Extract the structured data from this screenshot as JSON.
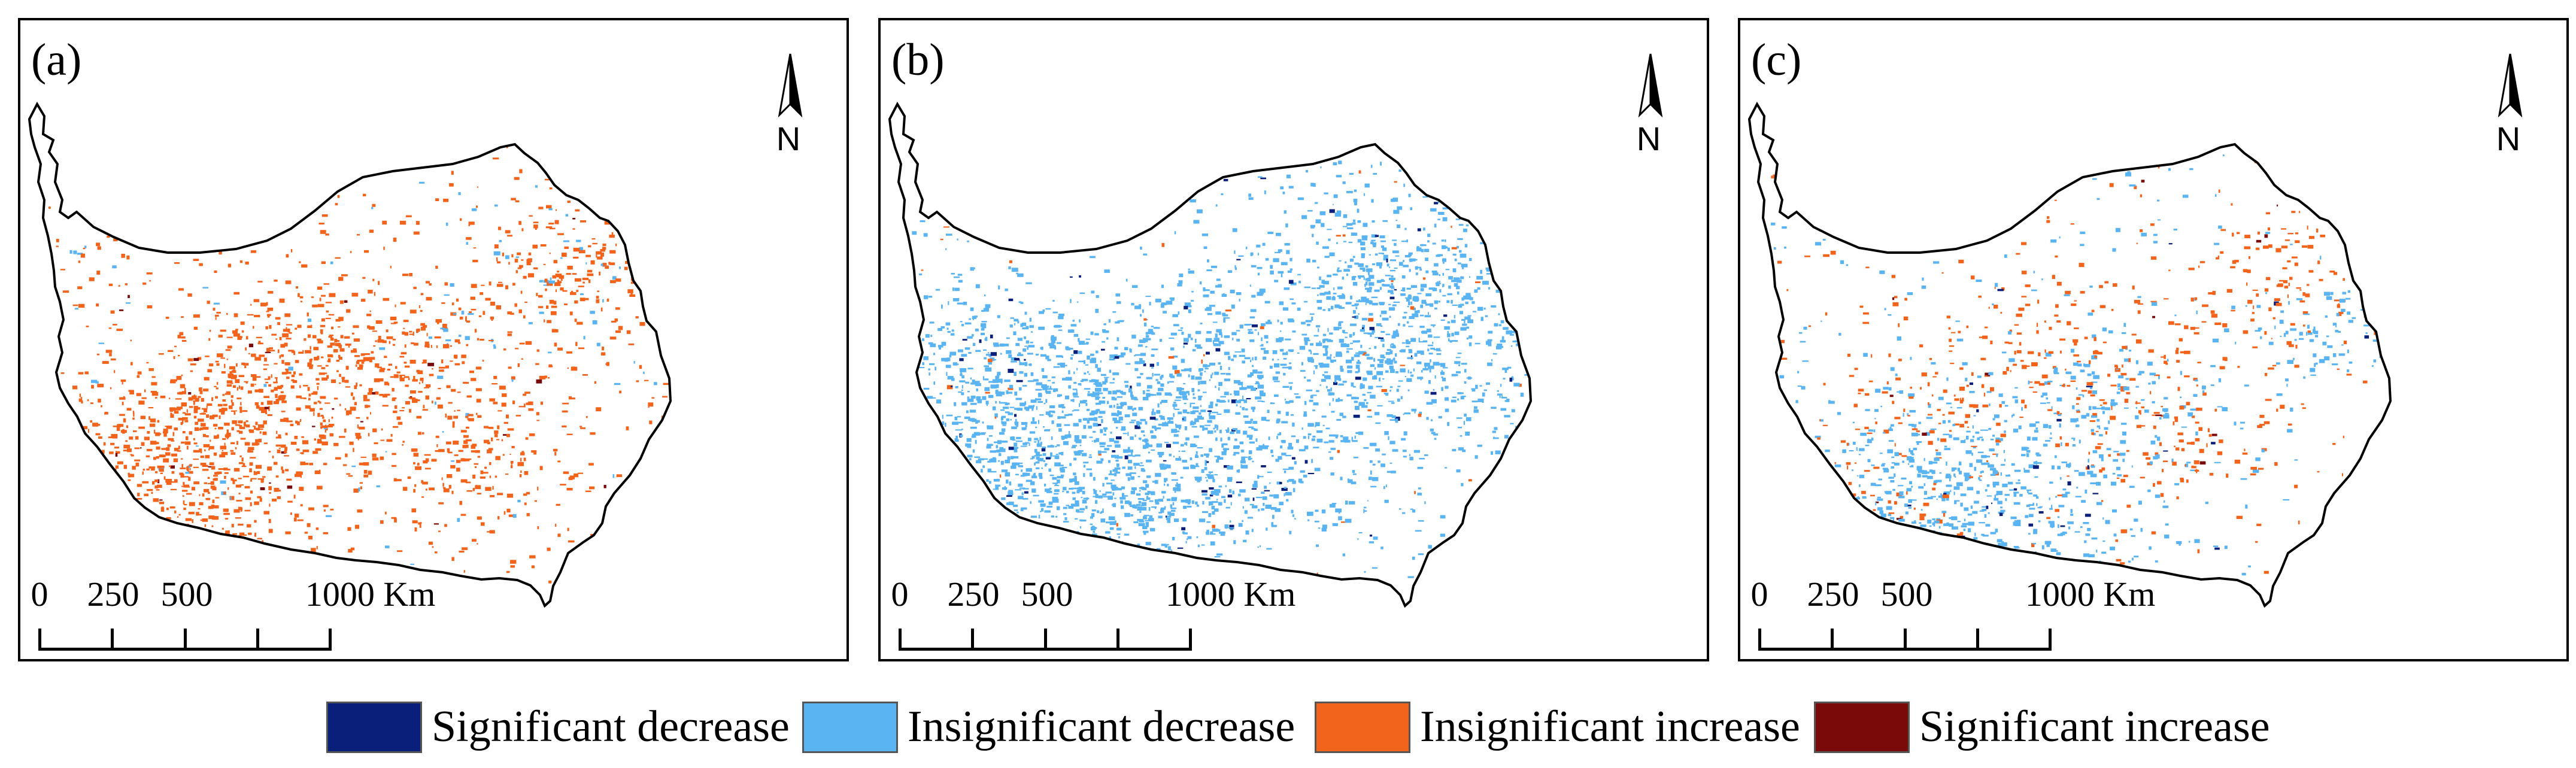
{
  "panels": [
    {
      "label": "(a)",
      "north": "N",
      "scale": {
        "ticks": [
          "0",
          "250",
          "500",
          "1000 Km"
        ]
      },
      "pattern": {
        "increase_share": 0.78,
        "decrease_share": 0.16,
        "significant_share": 0.02
      }
    },
    {
      "label": "(b)",
      "north": "N",
      "scale": {
        "ticks": [
          "0",
          "250",
          "500",
          "1000 Km"
        ]
      },
      "pattern": {
        "increase_share": 0.08,
        "decrease_share": 0.88,
        "significant_share": 0.03
      }
    },
    {
      "label": "(c)",
      "north": "N",
      "scale": {
        "ticks": [
          "0",
          "250",
          "500",
          "1000 Km"
        ]
      },
      "pattern": {
        "increase_share": 0.42,
        "decrease_share": 0.52,
        "significant_share": 0.03
      }
    }
  ],
  "legend": [
    {
      "label": "Significant decrease",
      "color": "#0a1f7a"
    },
    {
      "label": "Insignificant decrease",
      "color": "#5ab4f2"
    },
    {
      "label": "Insignificant increase",
      "color": "#f2631c"
    },
    {
      "label": "Significant increase",
      "color": "#7a0a0a"
    }
  ]
}
